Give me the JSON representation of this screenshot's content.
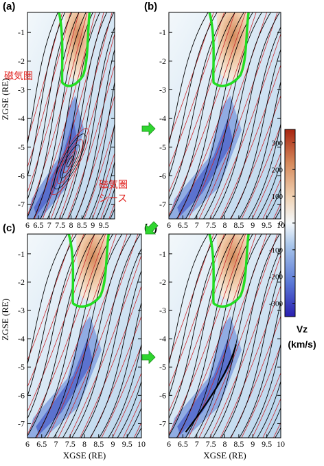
{
  "chart_data": {
    "type": "heatmap",
    "panels": [
      {
        "label": "(a)",
        "ylabel": "ZGSE  (RE)",
        "xlabel": "",
        "annotations": [
          "磁気圏",
          "磁気圏",
          "シース"
        ]
      },
      {
        "label": "(b)",
        "ylabel": "",
        "xlabel": "",
        "annotations": []
      },
      {
        "label": "(c)",
        "ylabel": "ZGSE  (RE)",
        "xlabel": "XGSE  (RE)",
        "annotations": []
      },
      {
        "label": "(d)",
        "ylabel": "",
        "xlabel": "XGSE  (RE)",
        "annotations": []
      }
    ],
    "xlim": [
      6,
      10
    ],
    "ylim": [
      -7.5,
      -0.3
    ],
    "xticks": [
      "6",
      "6.5",
      "7",
      "7.5",
      "8",
      "8.5",
      "9",
      "9.5",
      "10"
    ],
    "xticks_a": [
      "6",
      "6.5",
      "7",
      "7.5",
      "8",
      "8.5",
      "9",
      "9.5"
    ],
    "yticks": [
      "-1",
      "-2",
      "-3",
      "-4",
      "-5",
      "-6",
      "-7"
    ],
    "colorbar": {
      "title": "Vz",
      "unit": "(km/s)",
      "range": [
        -350,
        350
      ],
      "ticks": [
        "300",
        "200",
        "100",
        "0",
        "-100",
        "-200",
        "-300"
      ],
      "colors": [
        "#2a1fb0",
        "#5a78d6",
        "#a9c6ea",
        "#f4f8fb",
        "#f0d2b4",
        "#d68a5c",
        "#a82510"
      ]
    },
    "line_colors": {
      "field": "#000000",
      "flow": "#c8262a",
      "boundary": "#22dd22"
    },
    "arrow_color": "#2fd62f"
  }
}
